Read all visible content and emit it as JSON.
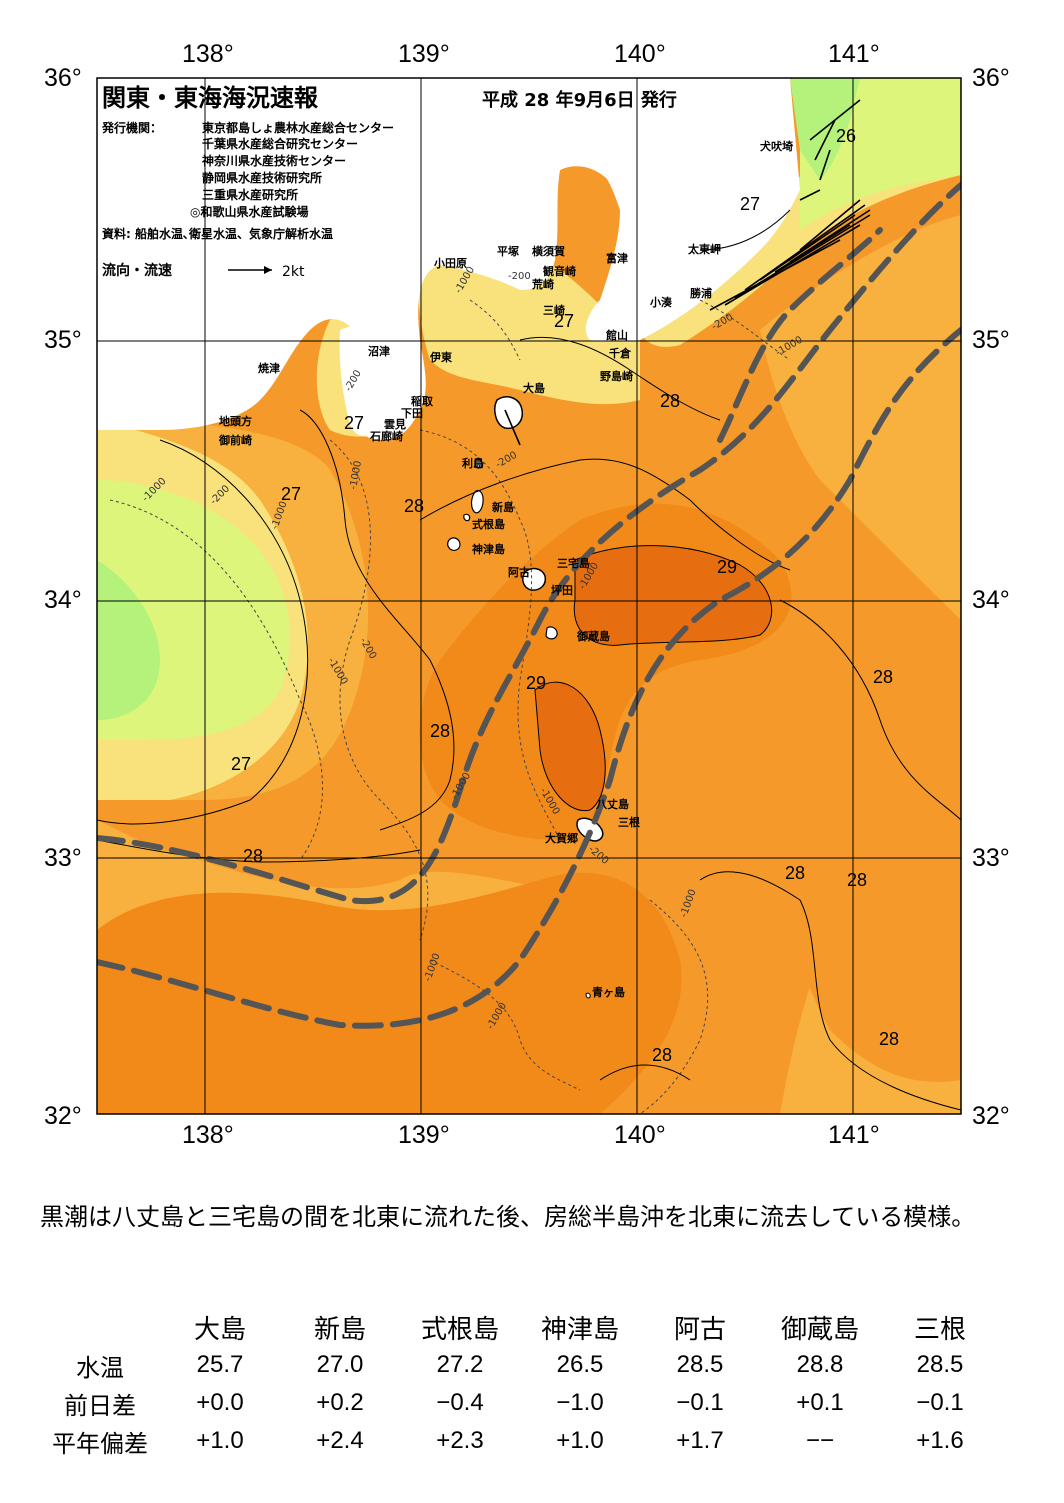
{
  "header": {
    "title": "関東・東海海況速報",
    "date": "平成 28 年9月6日 発行",
    "issuer_label": "発行機関：",
    "issuers": [
      "東京都島しょ農林水産総合センター",
      "千葉県水産総合研究センター",
      "神奈川県水産技術センター",
      "静岡県水産技術研究所",
      "三重県水産研究所",
      "◎和歌山県水産試験場"
    ],
    "source": "資料: 船舶水温､衛星水温、気象庁解析水温",
    "current_legend": "流向・流速",
    "current_scale": "2kt"
  },
  "axes": {
    "lon_ticks": [
      "138°",
      "139°",
      "140°",
      "141°"
    ],
    "lat_ticks": [
      "36°",
      "35°",
      "34°",
      "33°",
      "32°"
    ]
  },
  "place_labels": [
    "犬吠埼",
    "太東岬",
    "勝浦",
    "小湊",
    "富津",
    "館山",
    "千倉",
    "野島崎",
    "観音崎",
    "平塚",
    "横須賀",
    "荒崎",
    "三崎",
    "小田原",
    "沼津",
    "伊東",
    "稲取",
    "下田",
    "雲見",
    "石廊崎",
    "焼津",
    "地頭方",
    "御前崎",
    "大島",
    "利島",
    "新島",
    "式根島",
    "神津島",
    "阿古",
    "三宅島",
    "坪田",
    "御蔵島",
    "八丈島",
    "三根",
    "大賀郷",
    "青ヶ島"
  ],
  "isotherm_labels": [
    "26",
    "27",
    "27",
    "27",
    "27",
    "27",
    "28",
    "28",
    "28",
    "28",
    "28",
    "28",
    "28",
    "28",
    "29",
    "29"
  ],
  "depth_labels": [
    "-200",
    "-1000"
  ],
  "colors": {
    "t25": "#b5f27c",
    "t26": "#dcf57a",
    "t27": "#f9e27b",
    "t27_5": "#f8b13f",
    "t28": "#f59a2a",
    "t28_5": "#f28a1a",
    "t29": "#e66e10",
    "kuroshio": "#555555",
    "land": "#ffffff"
  },
  "summary": "黒潮は八丈島と三宅島の間を北東に流れた後、房総半島沖を北東に流去している模様。",
  "table": {
    "columns": [
      "大島",
      "新島",
      "式根島",
      "神津島",
      "阿古",
      "御蔵島",
      "三根"
    ],
    "rows": [
      {
        "label": "水温",
        "values": [
          "25.7",
          "27.0",
          "27.2",
          "26.5",
          "28.5",
          "28.8",
          "28.5"
        ]
      },
      {
        "label": "前日差",
        "values": [
          "+0.0",
          "+0.2",
          "−0.4",
          "−1.0",
          "−0.1",
          "+0.1",
          "−0.1"
        ]
      },
      {
        "label": "平年偏差",
        "values": [
          "+1.0",
          "+2.4",
          "+2.3",
          "+1.0",
          "+1.7",
          "−−",
          "+1.6"
        ]
      }
    ]
  }
}
